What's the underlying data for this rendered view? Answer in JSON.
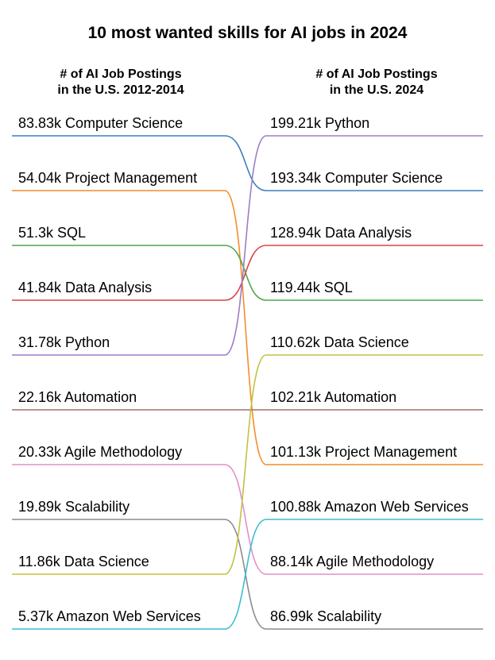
{
  "chart_data": {
    "type": "slope",
    "title": "10 most wanted skills for AI jobs in 2024",
    "left_header": [
      "# of AI Job Postings",
      "in the U.S. 2012-2014"
    ],
    "right_header": [
      "# of AI Job Postings",
      "in the U.S. 2024"
    ],
    "left": [
      {
        "skill": "Computer Science",
        "value": "83.83k",
        "label": "83.83k Computer Science",
        "color": "#3d7fc0"
      },
      {
        "skill": "Project Management",
        "value": "54.04k",
        "label": "54.04k Project Management",
        "color": "#f28e2b"
      },
      {
        "skill": "SQL",
        "value": "51.3k",
        "label": "51.3k SQL",
        "color": "#4ca84c"
      },
      {
        "skill": "Data Analysis",
        "value": "41.84k",
        "label": "41.84k Data Analysis",
        "color": "#d94545"
      },
      {
        "skill": "Python",
        "value": "31.78k",
        "label": "31.78k Python",
        "color": "#9b7ec7"
      },
      {
        "skill": "Automation",
        "value": "22.16k",
        "label": "22.16k Automation",
        "color": "#a0706a"
      },
      {
        "skill": "Agile Methodology",
        "value": "20.33k",
        "label": "20.33k Agile Methodology",
        "color": "#e28ec8"
      },
      {
        "skill": "Scalability",
        "value": "19.89k",
        "label": "19.89k Scalability",
        "color": "#8c8c8c"
      },
      {
        "skill": "Data Science",
        "value": "11.86k",
        "label": "11.86k Data Science",
        "color": "#c2c241"
      },
      {
        "skill": "Amazon Web Services",
        "value": "5.37k",
        "label": "5.37k Amazon Web Services",
        "color": "#3cbcd0"
      }
    ],
    "right": [
      {
        "skill": "Python",
        "value": "199.21k",
        "label": "199.21k Python",
        "color": "#9b7ec7"
      },
      {
        "skill": "Computer Science",
        "value": "193.34k",
        "label": "193.34k Computer Science",
        "color": "#3d7fc0"
      },
      {
        "skill": "Data Analysis",
        "value": "128.94k",
        "label": "128.94k Data Analysis",
        "color": "#d94545"
      },
      {
        "skill": "SQL",
        "value": "119.44k",
        "label": "119.44k SQL",
        "color": "#4ca84c"
      },
      {
        "skill": "Data Science",
        "value": "110.62k",
        "label": "110.62k Data Science",
        "color": "#c2c241"
      },
      {
        "skill": "Automation",
        "value": "102.21k",
        "label": "102.21k Automation",
        "color": "#a0706a"
      },
      {
        "skill": "Project Management",
        "value": "101.13k",
        "label": "101.13k Project Management",
        "color": "#f28e2b"
      },
      {
        "skill": "Amazon Web Services",
        "value": "100.88k",
        "label": "100.88k Amazon Web Services",
        "color": "#3cbcd0"
      },
      {
        "skill": "Agile Methodology",
        "value": "88.14k",
        "label": "88.14k Agile Methodology",
        "color": "#e28ec8"
      },
      {
        "skill": "Scalability",
        "value": "86.99k",
        "label": "86.99k Scalability",
        "color": "#8c8c8c"
      }
    ]
  }
}
